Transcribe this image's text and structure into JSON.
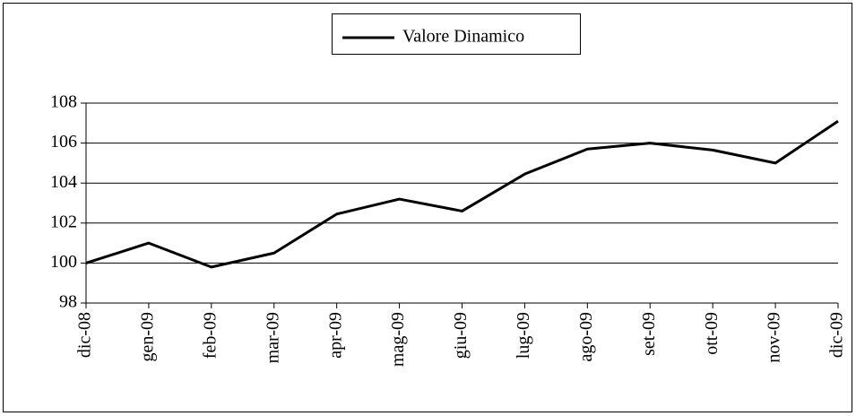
{
  "chart_data": {
    "type": "line",
    "categories": [
      "dic-08",
      "gen-09",
      "feb-09",
      "mar-09",
      "apr-09",
      "mag-09",
      "giu-09",
      "lug-09",
      "ago-09",
      "set-09",
      "ott-09",
      "nov-09",
      "dic-09"
    ],
    "series": [
      {
        "name": "Valore Dinamico",
        "color": "#000000",
        "values": [
          100,
          101,
          99.8,
          100.5,
          102.45,
          103.2,
          102.6,
          104.45,
          105.7,
          106,
          105.65,
          105,
          107.1
        ]
      }
    ],
    "ylim": [
      98,
      108
    ],
    "yticks": [
      98,
      100,
      102,
      104,
      106,
      108
    ],
    "grid": true,
    "legend": "top"
  }
}
